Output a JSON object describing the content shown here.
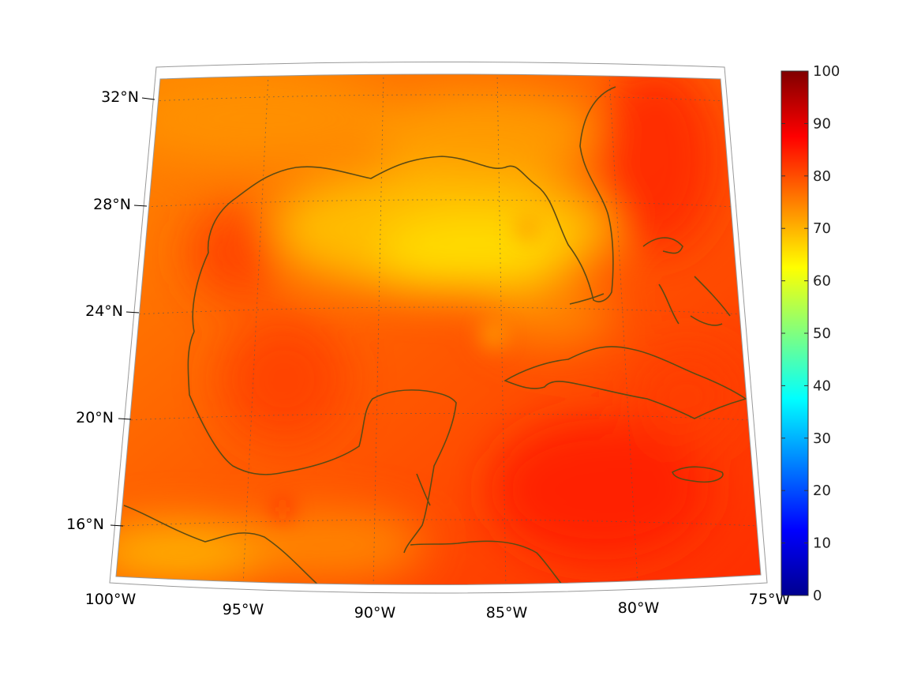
{
  "map": {
    "lat_labels": [
      "32°N",
      "28°N",
      "24°N",
      "20°N",
      "16°N"
    ],
    "lon_labels": [
      "100°W",
      "95°W",
      "90°W",
      "85°W",
      "80°W",
      "75°W"
    ],
    "graticule": "dotted",
    "coastline_color": "#5c4a14"
  },
  "colorbar": {
    "colormap": "jet",
    "ticks": [
      "0",
      "10",
      "20",
      "30",
      "40",
      "50",
      "60",
      "70",
      "80",
      "90",
      "100"
    ],
    "range": [
      0,
      100
    ]
  },
  "field": {
    "dominant_colors": [
      "#ff3a00",
      "#ff6a00",
      "#ffa000",
      "#ffd000",
      "#ffee00"
    ]
  }
}
